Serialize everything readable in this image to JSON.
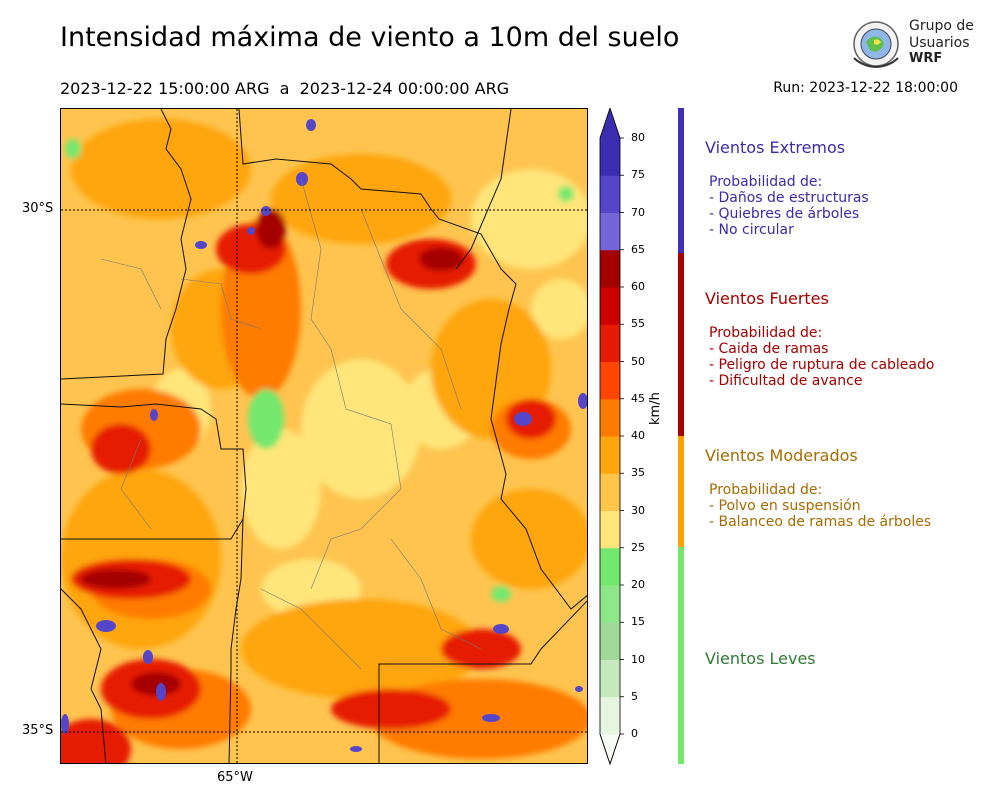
{
  "header": {
    "title": "Intensidad máxima de viento a 10m del suelo",
    "period": "2023-12-22 15:00:00 ARG  a  2023-12-24 00:00:00 ARG",
    "run": "Run: 2023-12-22 18:00:00"
  },
  "logo": {
    "line1": "Grupo de",
    "line2": "Usuarios",
    "line3": "WRF"
  },
  "map": {
    "lat_labels": [
      "30°S",
      "35°S"
    ],
    "lon_labels": [
      "65°W"
    ],
    "background_color": "#fec44f"
  },
  "colorbar": {
    "unit": "km/h",
    "ticks": [
      "0",
      "5",
      "10",
      "15",
      "20",
      "25",
      "30",
      "35",
      "40",
      "45",
      "50",
      "55",
      "60",
      "65",
      "70",
      "75",
      "80"
    ],
    "colors": [
      "#f7fcf5",
      "#e5f5e0",
      "#c7e9c0",
      "#a1d99b",
      "#8ee88a",
      "#74e86e",
      "#ffe57a",
      "#ffc44a",
      "#ffa510",
      "#ff7b00",
      "#ff4500",
      "#e61a00",
      "#cc0000",
      "#a50000",
      "#7466d9",
      "#5545c8",
      "#3b2db0"
    ]
  },
  "categories": [
    {
      "title": "Vientos Extremos",
      "color": "#3b2bab",
      "desc": [
        "Probabilidad de:",
        "- Daños de estructuras",
        "- Quiebres de árboles",
        "- No circular"
      ]
    },
    {
      "title": "Vientos Fuertes",
      "color": "#a50000",
      "desc": [
        "Probabilidad de:",
        "- Caida de ramas",
        "- Peligro de ruptura de cableado",
        "- Dificultad de avance"
      ]
    },
    {
      "title": "Vientos Moderados",
      "color": "#a66b00",
      "desc": [
        "Probabilidad de:",
        "- Polvo en suspensión",
        "- Balanceo de ramas de árboles"
      ]
    },
    {
      "title": "Vientos Leves",
      "color": "#2e7d32",
      "desc": []
    }
  ],
  "category_bar_colors": [
    "#3f2fb8",
    "#a50000",
    "#ffa000",
    "#74e86e"
  ]
}
